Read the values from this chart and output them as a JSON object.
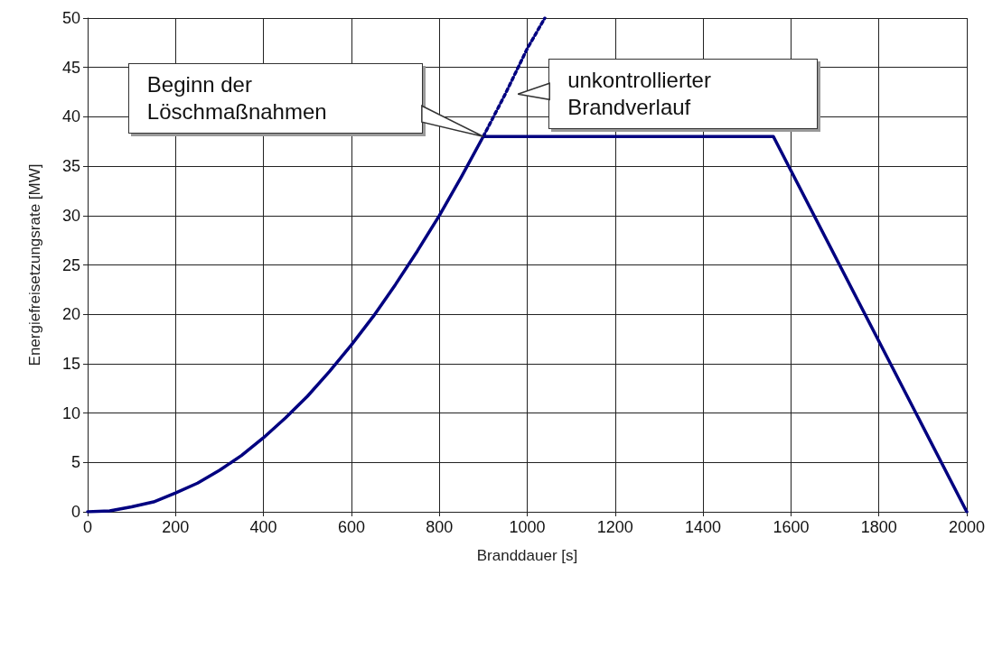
{
  "chart_data": {
    "type": "line",
    "xlabel": "Branddauer [s]",
    "ylabel": "Energiefreisetzungsrate [MW]",
    "series": [
      {
        "color": "#000080",
        "line_style": "solid",
        "x": [
          0,
          50,
          100,
          150,
          200,
          250,
          300,
          350,
          400,
          450,
          500,
          550,
          600,
          650,
          700,
          750,
          800,
          850,
          900,
          1560,
          2000
        ],
        "values": [
          0,
          0.1,
          0.5,
          1,
          1.9,
          2.9,
          4.2,
          5.7,
          7.5,
          9.5,
          11.7,
          14.2,
          16.9,
          19.8,
          23,
          26.4,
          30,
          33.9,
          38,
          38,
          0
        ]
      },
      {
        "color": "#000080",
        "line_style": "dotted",
        "x": [
          900,
          950,
          1000,
          1040
        ],
        "values": [
          38,
          42.3,
          46.9,
          50
        ]
      }
    ],
    "xlim": [
      0,
      2000
    ],
    "xticks": [
      0,
      200,
      400,
      600,
      800,
      1000,
      1200,
      1400,
      1600,
      1800,
      2000
    ],
    "ylim": [
      0,
      50
    ],
    "yticks": [
      0,
      5,
      10,
      15,
      20,
      25,
      30,
      35,
      40,
      45,
      50
    ],
    "grid": true,
    "marker": "none",
    "annotations": [
      "Beginn der Löschmaßnahmen",
      "unkontrollierter Brandverlauf"
    ]
  }
}
